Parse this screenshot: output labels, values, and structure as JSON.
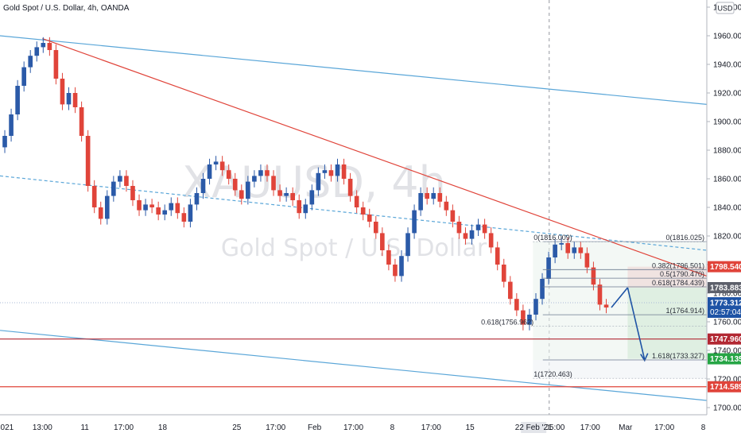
{
  "header": {
    "title": "Gold Spot / U.S. Dollar, 4h, OANDA",
    "currency": "USD"
  },
  "watermark": {
    "symbol": "XAUUSD, 4h",
    "name": "Gold Spot / U.S. Dollar"
  },
  "chart_data": {
    "type": "candlestick",
    "ylim": [
      1695,
      1985
    ],
    "yticks": [
      1700,
      1720,
      1740,
      1760,
      1780,
      1800,
      1820,
      1840,
      1860,
      1880,
      1900,
      1920,
      1940,
      1960,
      1980
    ],
    "ytick_labels": [
      "1700.000",
      "1720.000",
      "1740.000",
      "1760.000",
      "1780.000",
      "1800.000",
      "1820.000",
      "1840.000",
      "1860.000",
      "1880.000",
      "1900.000",
      "1920.000",
      "1940.000",
      "1960.000",
      "1980.000"
    ],
    "xlim": [
      0,
      100
    ],
    "xticks": [
      {
        "x": 1,
        "label": "021"
      },
      {
        "x": 6,
        "label": "13:00"
      },
      {
        "x": 12,
        "label": "11"
      },
      {
        "x": 17.5,
        "label": "17:00"
      },
      {
        "x": 23,
        "label": "18"
      },
      {
        "x": 33.5,
        "label": "25"
      },
      {
        "x": 39,
        "label": "17:00"
      },
      {
        "x": 44.5,
        "label": "Feb"
      },
      {
        "x": 50,
        "label": "17:00"
      },
      {
        "x": 55.5,
        "label": "8"
      },
      {
        "x": 61,
        "label": "17:00"
      },
      {
        "x": 66.5,
        "label": "15"
      },
      {
        "x": 78.5,
        "label": "05:00"
      },
      {
        "x": 83.5,
        "label": "17:00"
      },
      {
        "x": 88.5,
        "label": "Mar"
      },
      {
        "x": 94,
        "label": "17:00"
      },
      {
        "x": 99.5,
        "label": "8"
      }
    ],
    "highlight_xtick": {
      "x": 75.5,
      "label": "22 Feb '21"
    },
    "cursor_x": 77.7,
    "close": [
      1890,
      1905,
      1925,
      1938,
      1946,
      1952,
      1955,
      1950,
      1930,
      1912,
      1920,
      1910,
      1890,
      1855,
      1840,
      1832,
      1848,
      1858,
      1862,
      1855,
      1845,
      1838,
      1842,
      1840,
      1835,
      1838,
      1843,
      1836,
      1830,
      1842,
      1850,
      1860,
      1870,
      1872,
      1866,
      1860,
      1852,
      1846,
      1858,
      1862,
      1866,
      1862,
      1852,
      1848,
      1850,
      1845,
      1836,
      1842,
      1852,
      1864,
      1866,
      1862,
      1870,
      1860,
      1848,
      1840,
      1835,
      1830,
      1822,
      1810,
      1800,
      1792,
      1806,
      1822,
      1838,
      1850,
      1846,
      1850,
      1844,
      1838,
      1830,
      1822,
      1818,
      1824,
      1828,
      1822,
      1812,
      1800,
      1788,
      1776,
      1768,
      1758,
      1765,
      1776,
      1790,
      1805,
      1814,
      1815,
      1808,
      1812,
      1808,
      1798,
      1786,
      1772,
      1770
    ],
    "series": [
      {
        "name": "",
        "values": []
      }
    ],
    "lines": [
      {
        "kind": "channel",
        "color": "#5aa6d8",
        "from": [
          0,
          1960
        ],
        "to": [
          100,
          1912
        ]
      },
      {
        "kind": "channel-dashed",
        "color": "#5aa6d8",
        "from": [
          0,
          1862
        ],
        "to": [
          100,
          1810
        ]
      },
      {
        "kind": "channel",
        "color": "#5aa6d8",
        "from": [
          0,
          1754
        ],
        "to": [
          100,
          1705
        ]
      },
      {
        "kind": "trendline",
        "color": "#e0443a",
        "from": [
          6,
          1958
        ],
        "to": [
          100,
          1792
        ]
      },
      {
        "kind": "horizontal",
        "color": "#b22833",
        "y": 1747.96
      },
      {
        "kind": "horizontal",
        "color": "#e0443a",
        "y": 1714.589
      },
      {
        "kind": "horizontal-dotted",
        "color": "#a9b8d6",
        "y": 1773.312
      }
    ],
    "fib": [
      {
        "label": "0(1816.025)",
        "y": 1816.025
      },
      {
        "label": "0.382(1796.501)",
        "y": 1796.501
      },
      {
        "label": "0.5(1790.470)",
        "y": 1790.47
      },
      {
        "label": "0.618(1784.439)",
        "y": 1784.439
      },
      {
        "label": "1(1764.914)",
        "y": 1764.914
      },
      {
        "label": "1.618(1733.327)",
        "y": 1733.327
      }
    ],
    "fib2": [
      {
        "label": "0(1816.009)",
        "y": 1816.009
      },
      {
        "label": "0.618(1756.962)",
        "y": 1756.962
      },
      {
        "label": "1(1720.463)",
        "y": 1720.463
      }
    ],
    "position": {
      "entry": 1783.883,
      "stop": 1798.54,
      "target": 1734.135
    },
    "price_tags": [
      {
        "label": "1798.540",
        "y": 1798.54,
        "color": "#e0443a"
      },
      {
        "label": "1783.883",
        "y": 1783.883,
        "color": "#5d606b"
      },
      {
        "label": "1773.312",
        "y": 1773.312,
        "color": "#1e53a5",
        "sub": "02:57:04"
      },
      {
        "label": "1747.960",
        "y": 1747.96,
        "color": "#b22833"
      },
      {
        "label": "1734.135",
        "y": 1734.135,
        "color": "#26a545"
      },
      {
        "label": "1714.589",
        "y": 1714.589,
        "color": "#e0443a"
      }
    ],
    "colors": {
      "up": "#2b5aa8",
      "down": "#e0443a",
      "channel": "#5aa6d8",
      "trend": "#e0443a"
    }
  }
}
